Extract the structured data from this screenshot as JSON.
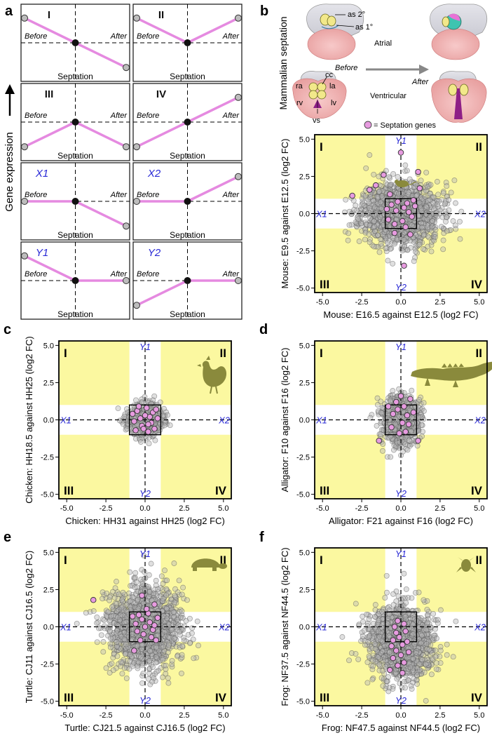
{
  "panel_letters": {
    "a": "a",
    "b": "b",
    "c": "c",
    "d": "d",
    "e": "e",
    "f": "f"
  },
  "panel_a": {
    "y_axis_label": "Gene expression",
    "before_label": "Before",
    "after_label": "After",
    "septation_label": "Septation",
    "patterns": [
      {
        "id": "I",
        "start": "high",
        "end": "low",
        "color": "blue_no"
      },
      {
        "id": "II",
        "start": "high",
        "end": "high"
      },
      {
        "id": "III",
        "start": "low",
        "end": "low"
      },
      {
        "id": "IV",
        "start": "low",
        "end": "high"
      },
      {
        "id": "X1",
        "start": "mid",
        "end": "low"
      },
      {
        "id": "X2",
        "start": "mid",
        "end": "high"
      },
      {
        "id": "Y1",
        "start": "high",
        "end": "mid"
      },
      {
        "id": "Y2",
        "start": "low",
        "end": "mid"
      }
    ],
    "pattern_labels": [
      "I",
      "II",
      "III",
      "IV",
      "X1",
      "X2",
      "Y1",
      "Y2"
    ]
  },
  "panel_b_diagram": {
    "vertical_title": "Mammalian septation",
    "labels": {
      "as2": "as 2°",
      "as1": "as 1°",
      "atrial": "Atrial",
      "ventricular": "Ventricular",
      "before": "Before",
      "after": "After",
      "cc": "cc",
      "ra": "ra",
      "la": "la",
      "rv": "rv",
      "lv": "lv",
      "vs": "vs"
    },
    "legend": "= Septation genes"
  },
  "quadrant_labels": {
    "q1": "I",
    "q2": "II",
    "q3": "III",
    "q4": "IV",
    "x1": "X1",
    "x2": "X2",
    "y1": "Y1",
    "y2": "Y2"
  },
  "colors": {
    "highlight_yellow": "#fbf8a0",
    "pattern_line": "#e58ae0",
    "septation_gene_fill": "#e79be0",
    "background_gene_fill": "#b8b8b8",
    "blue_label": "#2a2ad6",
    "silhouette": "#8a8a3c"
  },
  "chart_data": [
    {
      "id": "b",
      "type": "scatter",
      "species": "Mouse",
      "silhouette": "mouse",
      "xlabel": "Mouse: E16.5 against E12.5",
      "ylabel": "Mouse: E9.5 against E12.5",
      "unit": "(log2 FC)",
      "xlim": [
        -5.5,
        5.5
      ],
      "ylim": [
        -5.3,
        5.3
      ],
      "xticks": [
        "-5.0",
        "-2.5",
        "0.0",
        "2.5",
        "5.0"
      ],
      "yticks": [
        "-5.0",
        "-2.5",
        "0.0",
        "2.5",
        "5.0"
      ],
      "spread": {
        "sx": 1.25,
        "sy": 1.05,
        "n": 1400
      },
      "septation_genes": [
        [
          0.0,
          4.1
        ],
        [
          -3.1,
          1.2
        ],
        [
          -1.6,
          1.9
        ],
        [
          -1.1,
          2.6
        ],
        [
          1.1,
          2.8
        ],
        [
          -2.0,
          1.6
        ],
        [
          0.2,
          -3.5
        ],
        [
          -0.4,
          -1.3
        ],
        [
          0.6,
          -1.4
        ],
        [
          1.2,
          1.7
        ],
        [
          -0.7,
          1.3
        ],
        [
          0.9,
          0.5
        ],
        [
          0.4,
          0.7
        ],
        [
          -0.3,
          0.2
        ],
        [
          -0.6,
          0.6
        ],
        [
          0.1,
          -0.5
        ],
        [
          0.5,
          0.1
        ],
        [
          -0.2,
          0.8
        ],
        [
          0.7,
          -0.2
        ],
        [
          -0.8,
          -0.4
        ],
        [
          0.2,
          0.4
        ],
        [
          -0.4,
          -0.7
        ],
        [
          0.3,
          -0.9
        ],
        [
          0.8,
          0.9
        ],
        [
          -0.9,
          0.3
        ]
      ]
    },
    {
      "id": "c",
      "type": "scatter",
      "species": "Chicken",
      "silhouette": "chicken",
      "xlabel": "Chicken: HH31 against HH25",
      "ylabel": "Chicken: HH18.5 against HH25",
      "unit": "(log2 FC)",
      "xlim": [
        -5.5,
        5.5
      ],
      "ylim": [
        -5.3,
        5.3
      ],
      "xticks": [
        "-5.0",
        "-2.5",
        "0.0",
        "2.5",
        "5.0"
      ],
      "yticks": [
        "-5.0",
        "-2.5",
        "0.0",
        "2.5",
        "5.0"
      ],
      "spread": {
        "sx": 0.55,
        "sy": 0.5,
        "n": 700
      },
      "septation_genes": [
        [
          -0.5,
          0.6
        ],
        [
          0.3,
          0.2
        ],
        [
          -0.2,
          -0.4
        ],
        [
          0.6,
          -0.6
        ],
        [
          0.1,
          0.8
        ],
        [
          -0.7,
          -0.1
        ],
        [
          0.5,
          0.5
        ],
        [
          -0.3,
          0.1
        ],
        [
          0.2,
          -0.8
        ],
        [
          0.8,
          0.1
        ],
        [
          -0.6,
          -0.7
        ],
        [
          0.0,
          0.3
        ],
        [
          0.4,
          -0.2
        ],
        [
          -0.1,
          -0.6
        ],
        [
          -0.8,
          0.4
        ],
        [
          0.7,
          0.7
        ],
        [
          -0.4,
          0.9
        ],
        [
          0.2,
          -0.3
        ]
      ]
    },
    {
      "id": "d",
      "type": "scatter",
      "species": "Alligator",
      "silhouette": "alligator",
      "xlabel": "Alligator: F21 against F16",
      "ylabel": "Alligator: F10 against F16",
      "unit": "(log2 FC)",
      "xlim": [
        -5.5,
        5.5
      ],
      "ylim": [
        -5.3,
        5.3
      ],
      "xticks": [
        "-5.0",
        "-2.5",
        "0.0",
        "2.5",
        "5.0"
      ],
      "yticks": [
        "-5.0",
        "-2.5",
        "0.0",
        "2.5",
        "5.0"
      ],
      "spread": {
        "sx": 0.6,
        "sy": 0.85,
        "n": 700
      },
      "septation_genes": [
        [
          -1.4,
          -1.4
        ],
        [
          1.1,
          -1.4
        ],
        [
          -0.3,
          1.2
        ],
        [
          0.2,
          0.9
        ],
        [
          -0.5,
          0.4
        ],
        [
          0.4,
          0.3
        ],
        [
          0.1,
          -0.2
        ],
        [
          -0.2,
          0.7
        ],
        [
          0.6,
          1.4
        ],
        [
          -0.6,
          -0.5
        ],
        [
          0.3,
          -0.8
        ],
        [
          0.0,
          1.6
        ],
        [
          -0.8,
          0.9
        ],
        [
          0.8,
          0.5
        ],
        [
          -0.1,
          -0.9
        ],
        [
          0.5,
          -0.3
        ]
      ]
    },
    {
      "id": "e",
      "type": "scatter",
      "species": "Turtle",
      "silhouette": "turtle",
      "xlabel": "Turtle: CJ21.5 against CJ16.5",
      "ylabel": "Turtle: CJ11 against CJ16.5",
      "unit": "(log2 FC)",
      "xlim": [
        -5.5,
        5.5
      ],
      "ylim": [
        -5.3,
        5.3
      ],
      "xticks": [
        "-5.0",
        "-2.5",
        "0.0",
        "2.5",
        "5.0"
      ],
      "yticks": [
        "-5.0",
        "-2.5",
        "0.0",
        "2.5",
        "5.0"
      ],
      "spread": {
        "sx": 1.15,
        "sy": 1.35,
        "n": 1500
      },
      "septation_genes": [
        [
          -3.3,
          1.8
        ],
        [
          -0.2,
          2.1
        ],
        [
          0.6,
          1.5
        ],
        [
          -0.7,
          -1.6
        ],
        [
          -0.4,
          0.8
        ],
        [
          0.3,
          0.3
        ],
        [
          -0.1,
          -0.5
        ],
        [
          0.5,
          -0.2
        ],
        [
          -0.6,
          0.2
        ],
        [
          0.2,
          0.9
        ],
        [
          -0.3,
          -0.9
        ],
        [
          0.8,
          0.6
        ],
        [
          0.0,
          0.0
        ],
        [
          -0.8,
          0.7
        ],
        [
          0.4,
          -0.7
        ],
        [
          -0.5,
          -0.3
        ],
        [
          0.7,
          -0.9
        ],
        [
          0.1,
          1.2
        ],
        [
          -0.2,
          0.5
        ],
        [
          0.6,
          0.1
        ]
      ]
    },
    {
      "id": "f",
      "type": "scatter",
      "species": "Frog",
      "silhouette": "frog",
      "xlabel": "Frog: NF47.5 against NF44.5",
      "ylabel": "Frog: NF37.5 against NF44.5",
      "unit": "(log2 FC)",
      "xlim": [
        -5.5,
        5.5
      ],
      "ylim": [
        -5.3,
        5.3
      ],
      "xticks": [
        "-5.0",
        "-2.5",
        "0.0",
        "2.5",
        "5.0"
      ],
      "yticks": [
        "-5.0",
        "-2.5",
        "0.0",
        "2.5",
        "5.0"
      ],
      "spread": {
        "sx": 1.0,
        "sy": 1.2,
        "cy": -1.0,
        "n": 1500
      },
      "septation_genes": [
        [
          -0.7,
          -2.9
        ],
        [
          -0.5,
          -2.1
        ],
        [
          -0.3,
          -1.6
        ],
        [
          0.1,
          -1.2
        ],
        [
          -0.1,
          -0.7
        ],
        [
          0.3,
          -0.3
        ],
        [
          -0.4,
          0.0
        ],
        [
          0.2,
          -2.4
        ],
        [
          -0.2,
          -2.6
        ],
        [
          0.0,
          -1.9
        ],
        [
          0.4,
          -1.0
        ],
        [
          -0.6,
          -1.3
        ],
        [
          -0.3,
          -0.4
        ],
        [
          0.5,
          -1.7
        ],
        [
          0.1,
          -3.1
        ],
        [
          -0.2,
          0.4
        ],
        [
          0.2,
          0.2
        ],
        [
          -0.5,
          -0.9
        ]
      ]
    }
  ]
}
